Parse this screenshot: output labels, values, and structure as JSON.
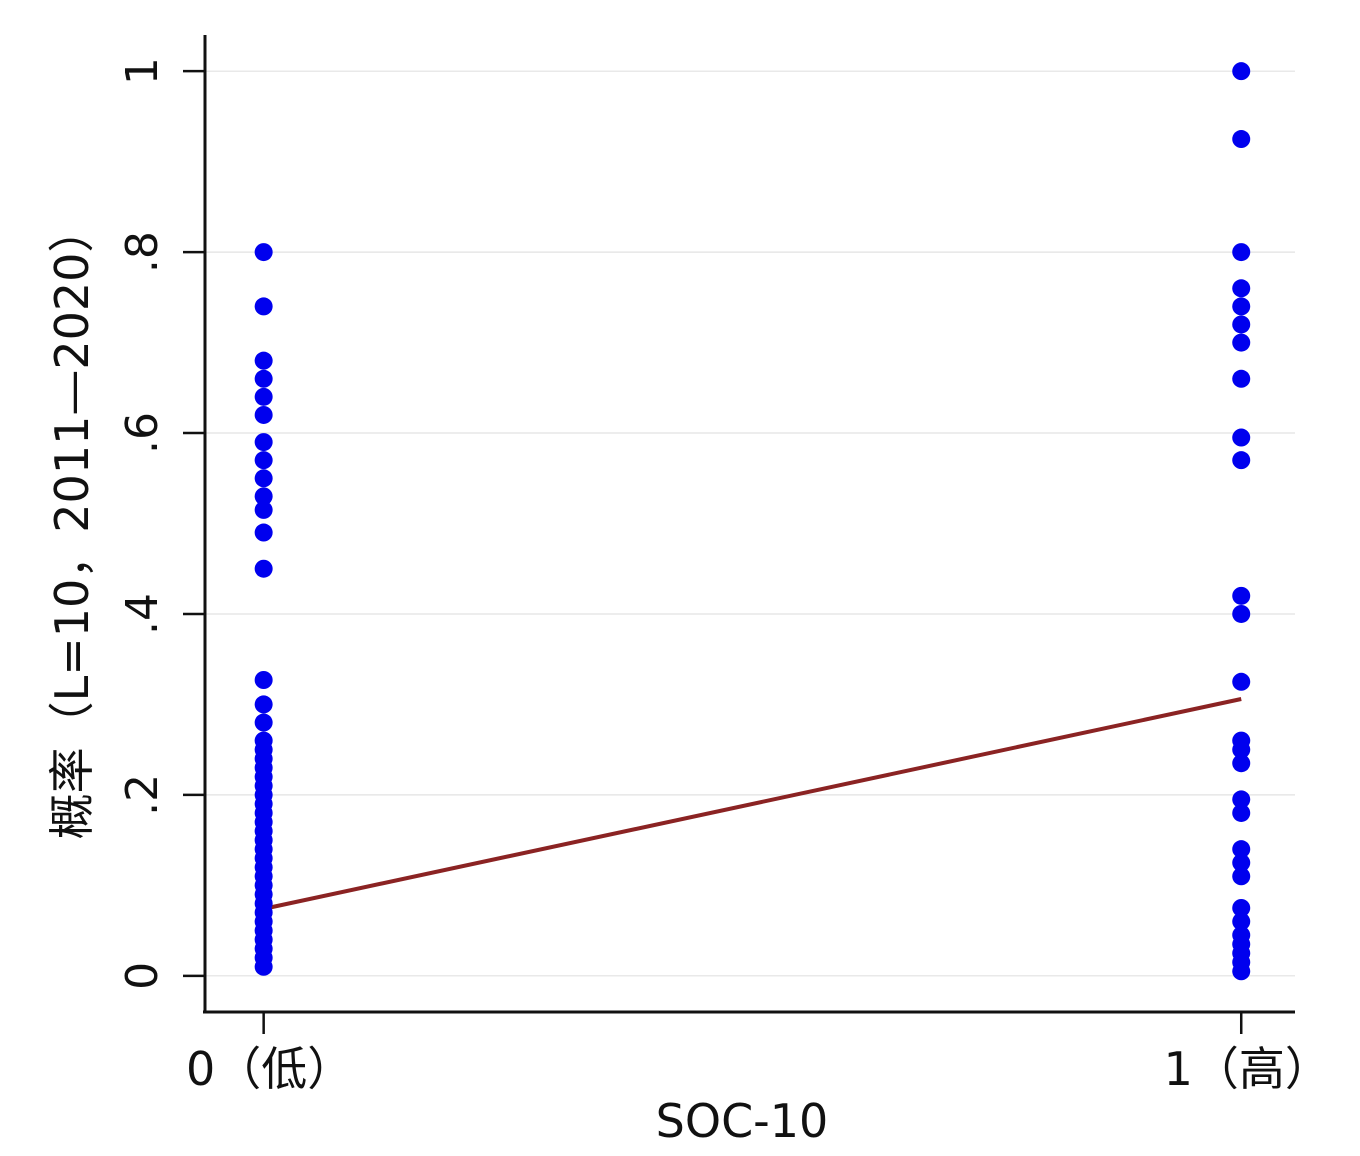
{
  "chart_data": {
    "type": "scatter",
    "title": "",
    "xlabel": "SOC-10",
    "ylabel": "概率（L=10，2011—2020）",
    "x_categories": [
      {
        "value": 0,
        "label": "0（低）"
      },
      {
        "value": 1,
        "label": "1（高）"
      }
    ],
    "x_ticks": [
      0,
      1
    ],
    "yticks": [
      0,
      0.2,
      0.4,
      0.6,
      0.8,
      1
    ],
    "ytick_labels": [
      "0",
      ".2",
      ".4",
      ".6",
      ".8",
      "1"
    ],
    "xlim": [
      -0.06,
      1.055
    ],
    "ylim": [
      -0.04,
      1.04
    ],
    "grid": "horizontal",
    "legend": "none",
    "series": [
      {
        "kind": "points",
        "color": "#0000ee",
        "points": [
          [
            0,
            0.8
          ],
          [
            0,
            0.74
          ],
          [
            0,
            0.68
          ],
          [
            0,
            0.66
          ],
          [
            0,
            0.64
          ],
          [
            0,
            0.62
          ],
          [
            0,
            0.59
          ],
          [
            0,
            0.57
          ],
          [
            0,
            0.55
          ],
          [
            0,
            0.53
          ],
          [
            0,
            0.515
          ],
          [
            0,
            0.49
          ],
          [
            0,
            0.45
          ],
          [
            0,
            0.327
          ],
          [
            0,
            0.3
          ],
          [
            0,
            0.28
          ],
          [
            0,
            0.26
          ],
          [
            0,
            0.25
          ],
          [
            0,
            0.24
          ],
          [
            0,
            0.23
          ],
          [
            0,
            0.22
          ],
          [
            0,
            0.21
          ],
          [
            0,
            0.2
          ],
          [
            0,
            0.19
          ],
          [
            0,
            0.18
          ],
          [
            0,
            0.17
          ],
          [
            0,
            0.16
          ],
          [
            0,
            0.15
          ],
          [
            0,
            0.14
          ],
          [
            0,
            0.13
          ],
          [
            0,
            0.12
          ],
          [
            0,
            0.11
          ],
          [
            0,
            0.1
          ],
          [
            0,
            0.09
          ],
          [
            0,
            0.08
          ],
          [
            0,
            0.07
          ],
          [
            0,
            0.06
          ],
          [
            0,
            0.05
          ],
          [
            0,
            0.04
          ],
          [
            0,
            0.03
          ],
          [
            0,
            0.02
          ],
          [
            0,
            0.01
          ],
          [
            1,
            1.0
          ],
          [
            1,
            0.925
          ],
          [
            1,
            0.8
          ],
          [
            1,
            0.76
          ],
          [
            1,
            0.74
          ],
          [
            1,
            0.72
          ],
          [
            1,
            0.7
          ],
          [
            1,
            0.66
          ],
          [
            1,
            0.595
          ],
          [
            1,
            0.57
          ],
          [
            1,
            0.42
          ],
          [
            1,
            0.4
          ],
          [
            1,
            0.325
          ],
          [
            1,
            0.26
          ],
          [
            1,
            0.25
          ],
          [
            1,
            0.235
          ],
          [
            1,
            0.195
          ],
          [
            1,
            0.18
          ],
          [
            1,
            0.14
          ],
          [
            1,
            0.125
          ],
          [
            1,
            0.11
          ],
          [
            1,
            0.075
          ],
          [
            1,
            0.06
          ],
          [
            1,
            0.045
          ],
          [
            1,
            0.035
          ],
          [
            1,
            0.025
          ],
          [
            1,
            0.015
          ],
          [
            1,
            0.005
          ]
        ]
      },
      {
        "kind": "fit-line",
        "color": "#8b2323",
        "x": [
          0,
          1
        ],
        "y": [
          0.074,
          0.306
        ]
      }
    ]
  }
}
